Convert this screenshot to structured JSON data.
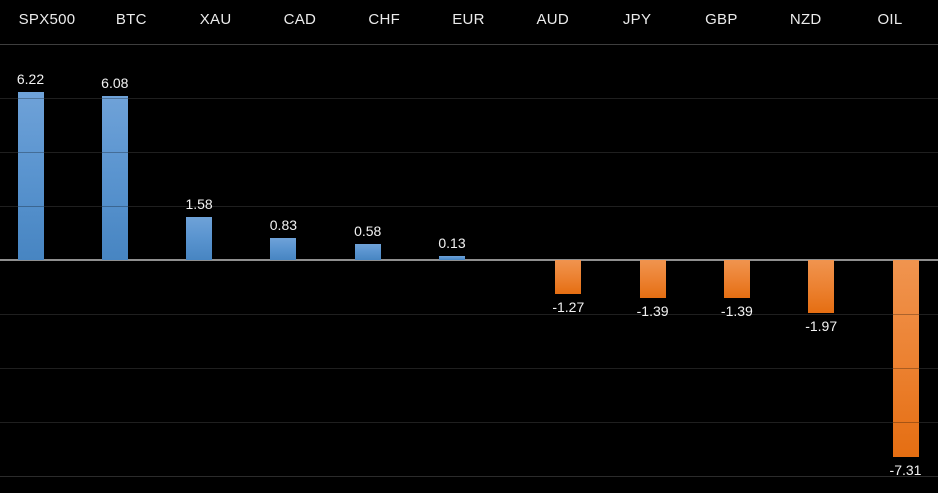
{
  "chart_data": {
    "type": "bar",
    "title": "",
    "xlabel": "",
    "ylabel": "",
    "categories": [
      "SPX500",
      "BTC",
      "XAU",
      "CAD",
      "CHF",
      "EUR",
      "AUD",
      "JPY",
      "GBP",
      "NZD",
      "OIL"
    ],
    "values": [
      6.22,
      6.08,
      1.58,
      0.83,
      0.58,
      0.13,
      -1.27,
      -1.39,
      -1.39,
      -1.97,
      -7.31
    ],
    "value_labels": [
      "6.22",
      "6.08",
      "1.58",
      "0.83",
      "0.58",
      "0.13",
      "-1.27",
      "-1.39",
      "-1.39",
      "-1.97",
      "-7.31"
    ],
    "ylim": [
      -8,
      8
    ],
    "gridline_step": 2,
    "grid": true,
    "legend": "none",
    "orientation": "vertical",
    "category_labels_position": "top",
    "colors": {
      "background": "#000000",
      "positive_bar_top": "#6FA2D8",
      "positive_bar_bottom": "#4785C2",
      "negative_bar_top": "#F0944F",
      "negative_bar_bottom": "#E56E12",
      "gridline": "#2b2b2b",
      "top_gridline": "#575757",
      "bottom_gridline": "#3c3c3c",
      "zero_line": "#8f8f8f",
      "text": "#ececec"
    }
  }
}
